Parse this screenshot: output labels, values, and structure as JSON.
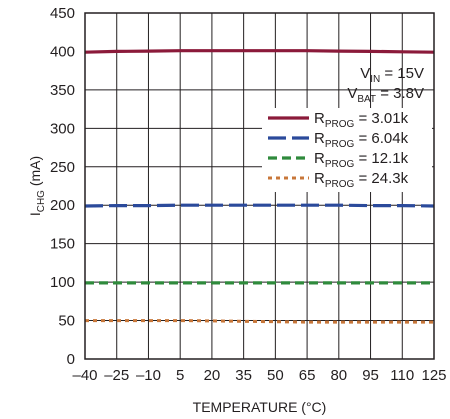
{
  "chart_data": {
    "type": "line",
    "xlabel": "TEMPERATURE (°C)",
    "ylabel_main": "I",
    "ylabel_sub": "CHG",
    "ylabel_unit": " (mA)",
    "xlim": [
      -40,
      125
    ],
    "ylim": [
      0,
      450
    ],
    "x_ticks": [
      -40,
      -25,
      -10,
      5,
      20,
      35,
      50,
      65,
      80,
      95,
      110,
      125
    ],
    "x_tick_labels": [
      "–40",
      "–25",
      "–10",
      "5",
      "20",
      "35",
      "50",
      "65",
      "80",
      "95",
      "110",
      "125"
    ],
    "y_ticks": [
      0,
      50,
      100,
      150,
      200,
      250,
      300,
      350,
      400,
      450
    ],
    "y_tick_labels": [
      "0",
      "50",
      "100",
      "150",
      "200",
      "250",
      "300",
      "350",
      "400",
      "450"
    ],
    "grid": true,
    "legend_position": "right",
    "conditions": [
      {
        "main": "V",
        "sub": "IN",
        "rest": " = 15V"
      },
      {
        "main": "V",
        "sub": "BAT",
        "rest": " = 3.8V"
      }
    ],
    "series": [
      {
        "name": "RPROG = 3.01k",
        "label_main": "R",
        "label_sub": "PROG",
        "label_rest": " = 3.01k",
        "color": "#8b1a3a",
        "style": "solid",
        "x": [
          -40,
          -25,
          -10,
          5,
          20,
          35,
          50,
          65,
          80,
          95,
          110,
          125
        ],
        "values": [
          399,
          400,
          400.5,
          401,
          401,
          401,
          401,
          401,
          400.5,
          400,
          399.5,
          399
        ]
      },
      {
        "name": "RPROG = 6.04k",
        "label_main": "R",
        "label_sub": "PROG",
        "label_rest": " = 6.04k",
        "color": "#2b4a9b",
        "style": "longdash",
        "x": [
          -40,
          -25,
          -10,
          5,
          20,
          35,
          50,
          65,
          80,
          95,
          110,
          125
        ],
        "values": [
          199,
          199.5,
          199.5,
          200,
          200,
          200,
          200,
          200,
          200,
          199.5,
          199.5,
          199
        ]
      },
      {
        "name": "RPROG = 12.1k",
        "label_main": "R",
        "label_sub": "PROG",
        "label_rest": " = 12.1k",
        "color": "#2f8a3c",
        "style": "dash",
        "x": [
          -40,
          -25,
          -10,
          5,
          20,
          35,
          50,
          65,
          80,
          95,
          110,
          125
        ],
        "values": [
          99,
          99,
          99,
          99,
          99,
          99,
          99,
          99,
          99,
          99,
          99,
          99
        ]
      },
      {
        "name": "RPROG = 24.3k",
        "label_main": "R",
        "label_sub": "PROG",
        "label_rest": " = 24.3k",
        "color": "#c8773a",
        "style": "dot",
        "x": [
          -40,
          -25,
          -10,
          5,
          20,
          35,
          50,
          65,
          80,
          95,
          110,
          125
        ],
        "values": [
          50,
          50,
          50,
          50,
          49.5,
          49,
          48.5,
          48,
          48,
          48,
          48,
          48
        ]
      }
    ]
  }
}
